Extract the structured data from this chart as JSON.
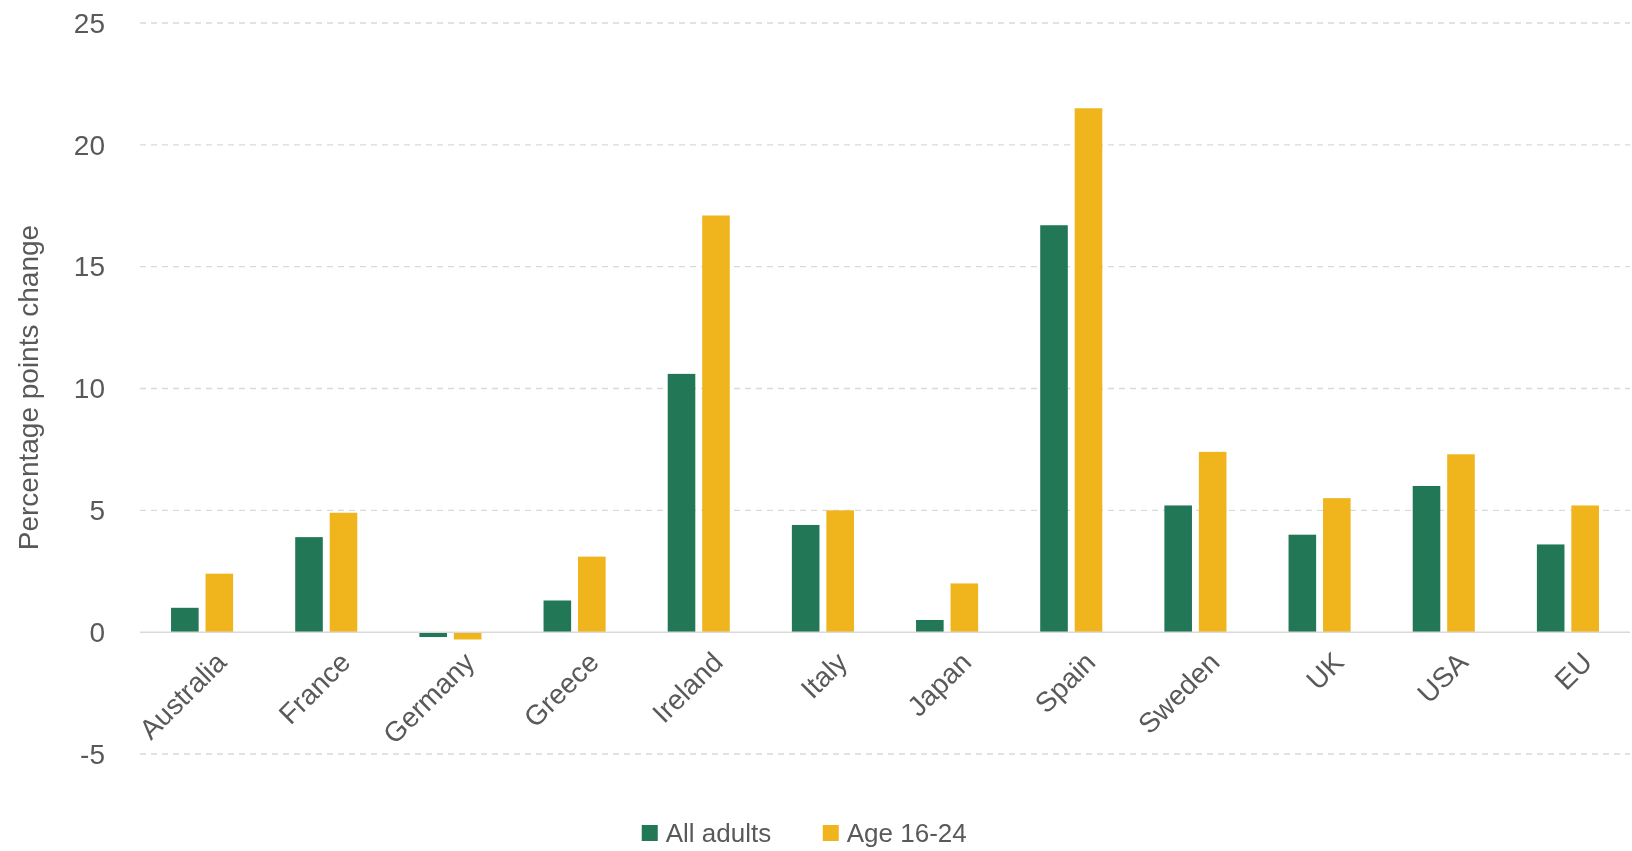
{
  "chart_data": {
    "type": "bar",
    "ylabel": "Percentage points change",
    "categories": [
      "Australia",
      "France",
      "Germany",
      "Greece",
      "Ireland",
      "Italy",
      "Japan",
      "Spain",
      "Sweden",
      "UK",
      "USA",
      "EU"
    ],
    "series": [
      {
        "name": "All adults",
        "color": "#217756",
        "values": [
          1.0,
          3.9,
          -0.2,
          1.3,
          10.6,
          4.4,
          0.5,
          16.7,
          5.2,
          4.0,
          6.0,
          3.6
        ]
      },
      {
        "name": "Age 16-24",
        "color": "#f0b41c",
        "values": [
          2.4,
          4.9,
          -0.3,
          3.1,
          17.1,
          5.0,
          2.0,
          21.5,
          7.4,
          5.5,
          7.3,
          5.2
        ]
      }
    ],
    "ylim": [
      -5,
      25
    ],
    "yticks": [
      -5,
      0,
      5,
      10,
      15,
      20,
      25
    ],
    "grid": "y",
    "legend": "bottom"
  }
}
